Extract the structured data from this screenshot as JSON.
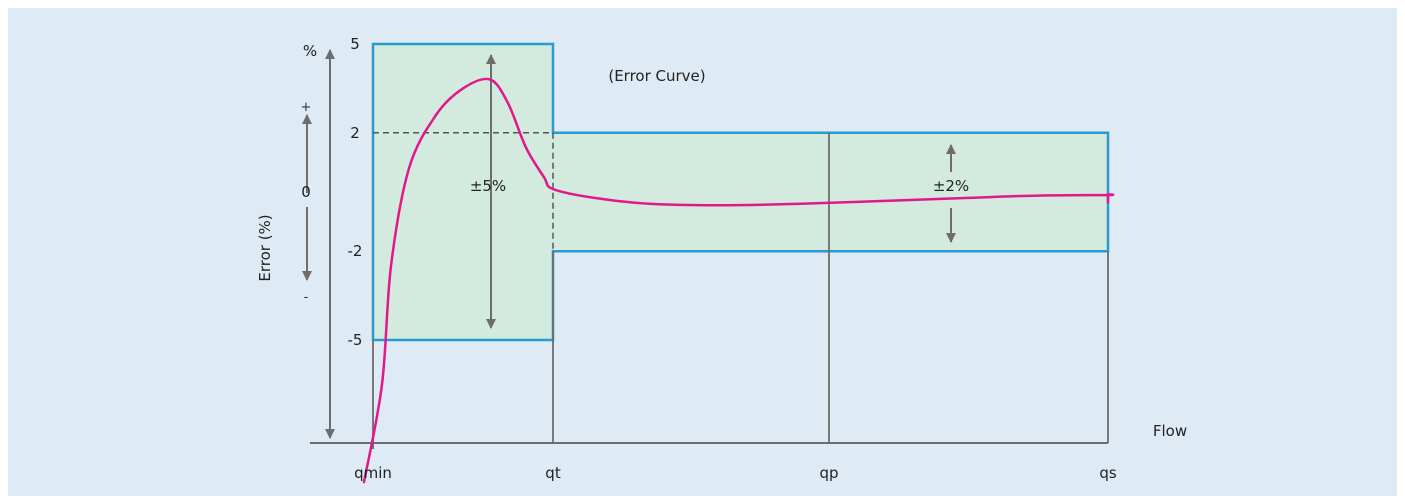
{
  "chart_data": {
    "type": "line",
    "title": "",
    "xlabel": "Flow",
    "ylabel": "Error (%)",
    "y_unit": "%",
    "y_ticks": [
      "5",
      "2",
      "0",
      "-2",
      "-5"
    ],
    "x_ticks": [
      "qmin",
      "qt",
      "qp",
      "qs"
    ],
    "sign_labels": {
      "plus": "+",
      "minus": "-"
    },
    "bands": [
      {
        "from": "qmin",
        "to": "qt",
        "lower": -5,
        "upper": 5,
        "label": "±5%"
      },
      {
        "from": "qt",
        "to": "qs",
        "lower": -2,
        "upper": 2,
        "label": "±2%"
      }
    ],
    "series": [
      {
        "name": "(Error Curve)",
        "color": "#e0188c",
        "note_position": "top-center",
        "x": [
          0,
          0.05,
          0.1,
          0.2,
          0.35,
          0.5,
          0.65,
          0.75,
          0.85,
          0.95,
          1.0,
          1.15,
          1.35,
          1.6,
          1.9,
          2.2,
          2.5,
          2.75,
          3.0,
          3.3,
          3.6,
          3.85,
          4.0
        ],
        "y": [
          -9.8,
          -6.5,
          -2.5,
          0.8,
          2.6,
          3.5,
          3.8,
          3.0,
          1.5,
          0.5,
          0.1,
          -0.2,
          -0.4,
          -0.45,
          -0.4,
          -0.3,
          -0.2,
          -0.12,
          -0.1,
          -0.08,
          -0.1,
          -0.2,
          -0.35
        ]
      }
    ],
    "colors": {
      "panel": "#deebf4",
      "band_fill": "#d3eadf",
      "band_stroke": "#2b9ad3",
      "axis": "#6d6d6d",
      "curve": "#e0188c"
    },
    "grid": false
  }
}
